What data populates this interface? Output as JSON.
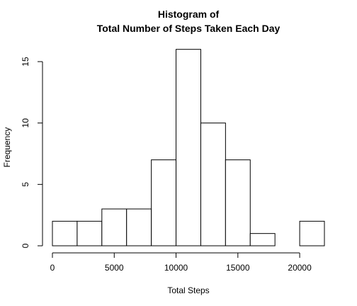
{
  "chart_data": {
    "type": "bar",
    "title": [
      "Histogram of",
      "Total Number of Steps Taken Each Day"
    ],
    "xlabel": "Total Steps",
    "ylabel": "Frequency",
    "bins": [
      {
        "start": 0,
        "end": 2000,
        "count": 2
      },
      {
        "start": 2000,
        "end": 4000,
        "count": 2
      },
      {
        "start": 4000,
        "end": 6000,
        "count": 3
      },
      {
        "start": 6000,
        "end": 8000,
        "count": 3
      },
      {
        "start": 8000,
        "end": 10000,
        "count": 7
      },
      {
        "start": 10000,
        "end": 12000,
        "count": 16
      },
      {
        "start": 12000,
        "end": 14000,
        "count": 10
      },
      {
        "start": 14000,
        "end": 16000,
        "count": 7
      },
      {
        "start": 16000,
        "end": 18000,
        "count": 1
      },
      {
        "start": 18000,
        "end": 20000,
        "count": 0
      },
      {
        "start": 20000,
        "end": 22000,
        "count": 2
      }
    ],
    "xticks": [
      0,
      5000,
      10000,
      15000,
      20000
    ],
    "xtick_labels": [
      "0",
      "5000",
      "10000",
      "15000",
      "20000"
    ],
    "yticks": [
      0,
      5,
      10,
      15
    ],
    "ytick_labels": [
      "0",
      "5",
      "10",
      "15"
    ],
    "xlim": [
      0,
      22000
    ],
    "ylim": [
      0,
      15
    ],
    "grid": false,
    "legend": null
  }
}
